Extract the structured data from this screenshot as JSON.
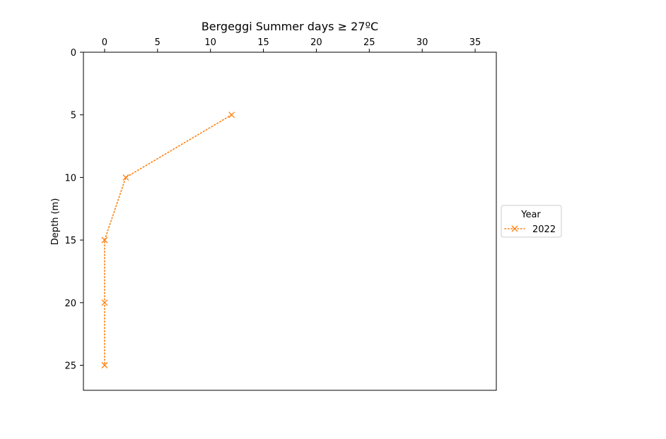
{
  "chart_data": {
    "type": "line",
    "title": "Bergeggi Summer days ≥ 27ºC",
    "xlabel": "",
    "ylabel": "Depth (m)",
    "x_axis_position": "top",
    "y_axis_inverted": true,
    "xlim": [
      -2,
      37
    ],
    "ylim": [
      0,
      27
    ],
    "x_ticks": [
      0,
      5,
      10,
      15,
      20,
      25,
      30,
      35
    ],
    "y_ticks": [
      0,
      5,
      10,
      15,
      20,
      25
    ],
    "grid": false,
    "legend": {
      "title": "Year",
      "placement": "right, outside plot"
    },
    "series": [
      {
        "name": "2022",
        "color": "#ff7f0e",
        "line_style": "dotted",
        "marker": "x",
        "x": [
          12,
          2,
          0,
          0,
          0
        ],
        "y": [
          5,
          10,
          15,
          20,
          25
        ]
      }
    ]
  }
}
